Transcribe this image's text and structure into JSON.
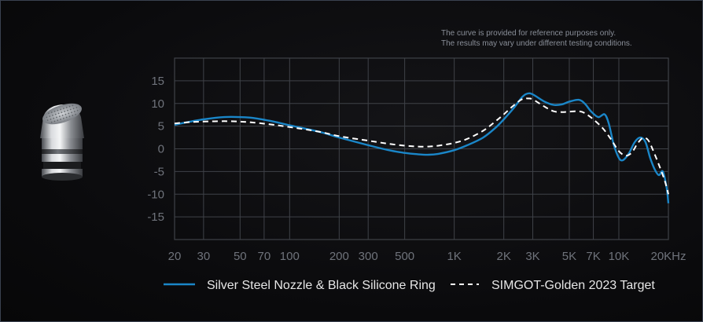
{
  "disclaimer": {
    "line1": "The curve is provided for reference purposes only.",
    "line2": "The results may vary under different testing conditions."
  },
  "colors": {
    "background": "#0c0c0e",
    "grid": "#3f4248",
    "tick_text": "#6f737b",
    "series1": "#1a86c8",
    "series2": "#ffffff",
    "legend_text": "#e6e6e6"
  },
  "product_icon": "earphone-nozzle-icon",
  "chart_data": {
    "type": "line",
    "title": "",
    "xlabel": "",
    "ylabel": "",
    "xscale": "log",
    "xlim": [
      20,
      20000
    ],
    "ylim": [
      -20,
      20
    ],
    "grid": true,
    "legend_position": "bottom",
    "x_ticks": [
      {
        "value": 20,
        "label": "20"
      },
      {
        "value": 30,
        "label": "30"
      },
      {
        "value": 50,
        "label": "50"
      },
      {
        "value": 70,
        "label": "70"
      },
      {
        "value": 100,
        "label": "100"
      },
      {
        "value": 200,
        "label": "200"
      },
      {
        "value": 300,
        "label": "300"
      },
      {
        "value": 500,
        "label": "500"
      },
      {
        "value": 1000,
        "label": "1K"
      },
      {
        "value": 2000,
        "label": "2K"
      },
      {
        "value": 3000,
        "label": "3K"
      },
      {
        "value": 5000,
        "label": "5K"
      },
      {
        "value": 7000,
        "label": "7K"
      },
      {
        "value": 10000,
        "label": "10K"
      },
      {
        "value": 20000,
        "label": "20KHz"
      }
    ],
    "y_ticks": [
      {
        "value": 15,
        "label": "15"
      },
      {
        "value": 10,
        "label": "10"
      },
      {
        "value": 5,
        "label": "5"
      },
      {
        "value": 0,
        "label": "0"
      },
      {
        "value": -5,
        "label": "-5"
      },
      {
        "value": -10,
        "label": "-10"
      },
      {
        "value": -15,
        "label": "-15"
      }
    ],
    "series": [
      {
        "name": "Silver Steel Nozzle & Black Silicone Ring",
        "style": "solid",
        "points": [
          [
            20,
            5.3
          ],
          [
            25,
            6.0
          ],
          [
            30,
            6.5
          ],
          [
            40,
            7.0
          ],
          [
            50,
            7.0
          ],
          [
            60,
            6.8
          ],
          [
            80,
            6.0
          ],
          [
            100,
            5.2
          ],
          [
            150,
            3.8
          ],
          [
            200,
            2.5
          ],
          [
            300,
            0.8
          ],
          [
            400,
            -0.3
          ],
          [
            500,
            -0.9
          ],
          [
            600,
            -1.2
          ],
          [
            700,
            -1.3
          ],
          [
            800,
            -1.1
          ],
          [
            1000,
            -0.3
          ],
          [
            1200,
            0.8
          ],
          [
            1500,
            2.5
          ],
          [
            1800,
            4.8
          ],
          [
            2000,
            6.5
          ],
          [
            2300,
            9.0
          ],
          [
            2600,
            11.5
          ],
          [
            2800,
            12.2
          ],
          [
            3000,
            12.0
          ],
          [
            3500,
            10.5
          ],
          [
            4000,
            9.7
          ],
          [
            4500,
            9.8
          ],
          [
            5000,
            10.4
          ],
          [
            5700,
            10.8
          ],
          [
            6200,
            10.0
          ],
          [
            6800,
            8.2
          ],
          [
            7500,
            7.0
          ],
          [
            8200,
            7.6
          ],
          [
            8700,
            5.5
          ],
          [
            9300,
            1.0
          ],
          [
            10000,
            -2.0
          ],
          [
            10600,
            -2.5
          ],
          [
            11500,
            -1.0
          ],
          [
            12500,
            1.5
          ],
          [
            13500,
            2.5
          ],
          [
            14500,
            1.5
          ],
          [
            15500,
            -2.0
          ],
          [
            16500,
            -4.5
          ],
          [
            17500,
            -5.8
          ],
          [
            18500,
            -5.0
          ],
          [
            19500,
            -8.5
          ],
          [
            20000,
            -12.0
          ]
        ]
      },
      {
        "name": "SIMGOT-Golden 2023 Target",
        "style": "dashed",
        "points": [
          [
            20,
            5.6
          ],
          [
            25,
            5.9
          ],
          [
            30,
            6.0
          ],
          [
            40,
            6.1
          ],
          [
            50,
            6.0
          ],
          [
            60,
            5.8
          ],
          [
            80,
            5.3
          ],
          [
            100,
            4.8
          ],
          [
            150,
            3.8
          ],
          [
            200,
            2.8
          ],
          [
            300,
            1.8
          ],
          [
            400,
            1.1
          ],
          [
            500,
            0.7
          ],
          [
            600,
            0.5
          ],
          [
            700,
            0.5
          ],
          [
            800,
            0.7
          ],
          [
            1000,
            1.3
          ],
          [
            1200,
            2.2
          ],
          [
            1500,
            4.0
          ],
          [
            1800,
            6.2
          ],
          [
            2000,
            7.6
          ],
          [
            2300,
            9.6
          ],
          [
            2600,
            11.0
          ],
          [
            2800,
            11.1
          ],
          [
            3000,
            10.9
          ],
          [
            3500,
            9.4
          ],
          [
            4000,
            8.3
          ],
          [
            4500,
            8.1
          ],
          [
            5000,
            8.2
          ],
          [
            5700,
            8.3
          ],
          [
            6200,
            7.9
          ],
          [
            7000,
            6.5
          ],
          [
            8000,
            4.5
          ],
          [
            9000,
            2.0
          ],
          [
            10000,
            -0.5
          ],
          [
            11000,
            -1.5
          ],
          [
            12000,
            -0.8
          ],
          [
            13000,
            1.2
          ],
          [
            14000,
            2.4
          ],
          [
            15000,
            2.0
          ],
          [
            16000,
            0.0
          ],
          [
            17500,
            -3.5
          ],
          [
            19000,
            -7.0
          ],
          [
            20000,
            -10.0
          ]
        ]
      }
    ]
  }
}
